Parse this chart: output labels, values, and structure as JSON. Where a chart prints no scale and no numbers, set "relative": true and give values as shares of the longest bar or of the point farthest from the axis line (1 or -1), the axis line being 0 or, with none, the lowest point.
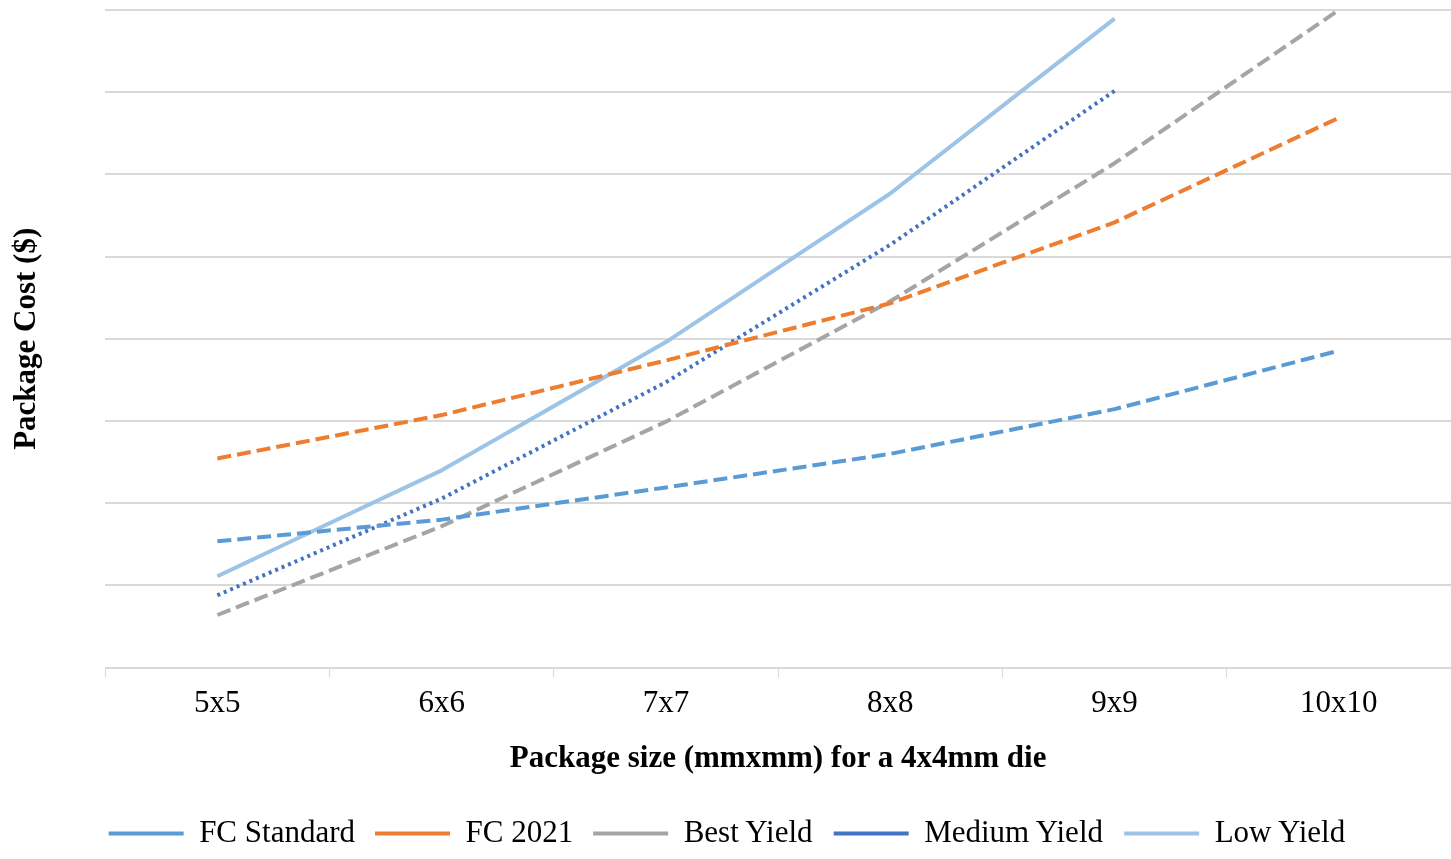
{
  "chart_data": {
    "type": "line",
    "relative": true,
    "xlabel": "Package size (mmxmm) for a 4x4mm die",
    "ylabel": "Package Cost ($)",
    "categories": [
      "5x5",
      "6x6",
      "7x7",
      "8x8",
      "9x9",
      "10x10"
    ],
    "grid": "y",
    "legend": "bottom",
    "marker": "none",
    "series": [
      {
        "name": "FC Standard",
        "color": "#5b9bd5",
        "line_style": "dashed",
        "values": [
          0.192,
          0.225,
          0.274,
          0.325,
          0.393,
          0.482
        ]
      },
      {
        "name": "FC 2021",
        "color": "#ed7d31",
        "line_style": "dashed",
        "values": [
          0.318,
          0.384,
          0.467,
          0.554,
          0.677,
          0.836
        ]
      },
      {
        "name": "Best Yield",
        "color": "#a5a5a5",
        "line_style": "dashed",
        "values": [
          0.08,
          0.215,
          0.374,
          0.557,
          0.767,
          1
        ]
      },
      {
        "name": "Medium Yield",
        "color": "#4472c4",
        "line_style": "dotted",
        "values": [
          0.11,
          0.257,
          0.434,
          0.643,
          0.877,
          null
        ]
      },
      {
        "name": "Low Yield",
        "color": "#9dc3e6",
        "line_style": "solid",
        "values": [
          0.139,
          0.3,
          0.495,
          0.721,
          0.987,
          null
        ]
      }
    ]
  }
}
